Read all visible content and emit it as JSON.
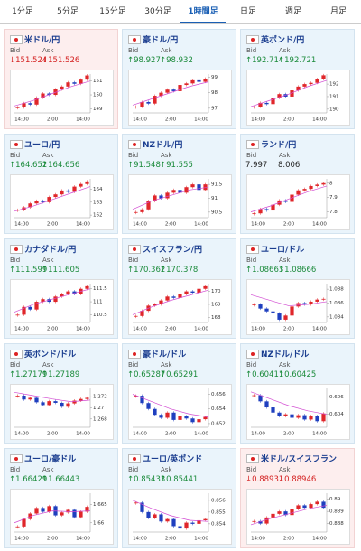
{
  "tabs": [
    "1分足",
    "5分足",
    "15分足",
    "30分足",
    "1時間足",
    "日足",
    "週足",
    "月足"
  ],
  "active_tab": 4,
  "bid_label": "Bid",
  "ask_label": "Ask",
  "xlabels": [
    "14:00",
    "2:00",
    "14:00"
  ],
  "cards": [
    {
      "name": "米ドル/円",
      "bid": "↓151.524",
      "ask": "↓151.526",
      "trend": "down",
      "ylim": [
        148.7,
        151.5
      ],
      "yticks": [
        151,
        150,
        149
      ],
      "closes": [
        149.1,
        149.4,
        149.3,
        149.8,
        150.1,
        150.0,
        150.4,
        150.6,
        150.9,
        150.8,
        151.1,
        151.4
      ],
      "ma": [
        149.2,
        149.6,
        150.1,
        150.6,
        151.0
      ]
    },
    {
      "name": "豪ドル/円",
      "bid": "↑98.927",
      "ask": "↑98.932",
      "trend": "up",
      "ylim": [
        96.7,
        99.2
      ],
      "yticks": [
        99,
        98,
        97
      ],
      "closes": [
        97.1,
        97.4,
        97.3,
        97.8,
        98.0,
        98.2,
        98.1,
        98.5,
        98.6,
        98.8,
        98.7,
        98.9
      ],
      "ma": [
        97.2,
        97.6,
        98.0,
        98.4,
        98.7
      ]
    },
    {
      "name": "英ポンド/円",
      "bid": "↑192.714",
      "ask": "↑192.721",
      "trend": "up",
      "ylim": [
        189.7,
        192.8
      ],
      "yticks": [
        192,
        191,
        190
      ],
      "closes": [
        190.2,
        190.5,
        190.4,
        190.9,
        191.2,
        191.0,
        191.5,
        191.8,
        192.0,
        192.1,
        192.4,
        192.7
      ],
      "ma": [
        190.2,
        190.7,
        191.2,
        191.8,
        192.3
      ]
    },
    {
      "name": "ユーロ/円",
      "bid": "↑164.652",
      "ask": "↑164.656",
      "trend": "up",
      "ylim": [
        161.8,
        164.8
      ],
      "yticks": [
        164,
        163,
        162
      ],
      "closes": [
        162.4,
        162.6,
        162.9,
        163.1,
        163.0,
        163.4,
        163.6,
        163.9,
        163.8,
        164.2,
        164.4,
        164.6
      ],
      "ma": [
        162.3,
        162.7,
        163.2,
        163.7,
        164.2
      ]
    },
    {
      "name": "NZドル/円",
      "bid": "↑91.548",
      "ask": "↑91.555",
      "trend": "up",
      "ylim": [
        90.3,
        91.7
      ],
      "yticks": [
        91.5,
        91,
        90.5
      ],
      "closes": [
        90.5,
        90.6,
        90.9,
        91.1,
        91.0,
        91.2,
        91.3,
        91.2,
        91.4,
        91.5,
        91.3,
        91.5
      ],
      "ma": [
        90.6,
        90.9,
        91.1,
        91.3,
        91.4
      ]
    },
    {
      "name": "ランド/円",
      "bid": "7.997",
      "ask": "8.006",
      "trend": "flat",
      "ylim": [
        7.76,
        8.03
      ],
      "yticks": [
        8,
        7.9,
        7.8
      ],
      "closes": [
        7.79,
        7.82,
        7.81,
        7.85,
        7.88,
        7.87,
        7.92,
        7.95,
        7.96,
        7.98,
        7.99,
        8.0
      ],
      "ma": [
        7.8,
        7.84,
        7.89,
        7.94,
        7.98
      ]
    },
    {
      "name": "カナダドル/円",
      "bid": "↑111.599",
      "ask": "↑111.605",
      "trend": "up",
      "ylim": [
        110.2,
        111.7
      ],
      "yticks": [
        111.5,
        111,
        110.5
      ],
      "closes": [
        110.5,
        110.8,
        110.7,
        111.0,
        111.1,
        111.0,
        111.2,
        111.3,
        111.4,
        111.3,
        111.5,
        111.6
      ],
      "ma": [
        110.6,
        110.9,
        111.1,
        111.3,
        111.5
      ]
    },
    {
      "name": "スイスフラン/円",
      "bid": "↑170.362",
      "ask": "↑170.378",
      "trend": "up",
      "ylim": [
        167.6,
        170.6
      ],
      "yticks": [
        170,
        169,
        168
      ],
      "closes": [
        168.1,
        168.5,
        168.9,
        169.0,
        169.3,
        169.6,
        169.5,
        169.8,
        170.0,
        169.9,
        170.2,
        170.4
      ],
      "ma": [
        168.2,
        168.8,
        169.3,
        169.7,
        170.1
      ]
    },
    {
      "name": "ユーロ/ドル",
      "bid": "↑1.08663",
      "ask": "↑1.08666",
      "trend": "up",
      "ylim": [
        1.0832,
        1.0888
      ],
      "yticks": [
        1.088,
        1.086,
        1.084
      ],
      "closes": [
        1.0858,
        1.0852,
        1.0848,
        1.0845,
        1.0836,
        1.0842,
        1.0855,
        1.086,
        1.0858,
        1.0862,
        1.0865,
        1.0866
      ],
      "ma": [
        1.0872,
        1.0864,
        1.0856,
        1.0858,
        1.0862
      ]
    },
    {
      "name": "英ポンド/ドル",
      "bid": "↑1.27179",
      "ask": "↑1.27189",
      "trend": "up",
      "ylim": [
        1.2665,
        1.2735
      ],
      "yticks": [
        1.272,
        1.27,
        1.268
      ],
      "closes": [
        1.2722,
        1.2715,
        1.2718,
        1.271,
        1.2705,
        1.2712,
        1.2709,
        1.2702,
        1.2708,
        1.2713,
        1.2716,
        1.2718
      ],
      "ma": [
        1.2728,
        1.2722,
        1.2716,
        1.2711,
        1.2714
      ]
    },
    {
      "name": "豪ドル/ドル",
      "bid": "↑0.65287",
      "ask": "↑0.65291",
      "trend": "up",
      "ylim": [
        0.6515,
        0.6568
      ],
      "yticks": [
        0.656,
        0.654,
        0.652
      ],
      "closes": [
        0.6558,
        0.6548,
        0.654,
        0.6532,
        0.6528,
        0.6535,
        0.6525,
        0.653,
        0.6527,
        0.6522,
        0.6526,
        0.6529
      ],
      "ma": [
        0.656,
        0.655,
        0.654,
        0.6533,
        0.6529
      ]
    },
    {
      "name": "NZドル/ドル",
      "bid": "↑0.60411",
      "ask": "↑0.60425",
      "trend": "up",
      "ylim": [
        0.6025,
        0.607
      ],
      "yticks": [
        0.606,
        0.604
      ],
      "closes": [
        0.6062,
        0.6055,
        0.6048,
        0.6042,
        0.6038,
        0.604,
        0.6036,
        0.6039,
        0.6034,
        0.6038,
        0.6032,
        0.6041
      ],
      "ma": [
        0.6066,
        0.6058,
        0.605,
        0.6044,
        0.604
      ]
    },
    {
      "name": "ユーロ/豪ドル",
      "bid": "↑1.66429",
      "ask": "↑1.66443",
      "trend": "up",
      "ylim": [
        1.6575,
        1.668
      ],
      "yticks": [
        1.665,
        1.66
      ],
      "closes": [
        1.659,
        1.661,
        1.6625,
        1.664,
        1.663,
        1.6645,
        1.662,
        1.6628,
        1.6635,
        1.6615,
        1.663,
        1.6643
      ],
      "ma": [
        1.66,
        1.662,
        1.6632,
        1.663,
        1.6632
      ]
    },
    {
      "name": "ユーロ/英ポンド",
      "bid": "↑0.85433",
      "ask": "↑0.85441",
      "trend": "up",
      "ylim": [
        0.8533,
        0.8566
      ],
      "yticks": [
        0.856,
        0.855,
        0.854
      ],
      "closes": [
        0.8558,
        0.855,
        0.8545,
        0.8548,
        0.8542,
        0.8544,
        0.8538,
        0.8536,
        0.8541,
        0.854,
        0.8543,
        0.8544
      ],
      "ma": [
        0.856,
        0.8553,
        0.8547,
        0.8543,
        0.8542
      ]
    },
    {
      "name": "米ドル/スイスフラン",
      "bid": "↓0.88931",
      "ask": "↓0.88946",
      "trend": "down",
      "ylim": [
        0.8873,
        0.8905
      ],
      "yticks": [
        0.89,
        0.889,
        0.888
      ],
      "closes": [
        0.8882,
        0.888,
        0.8885,
        0.8888,
        0.889,
        0.8887,
        0.8892,
        0.8895,
        0.8893,
        0.8896,
        0.8898,
        0.8893
      ],
      "ma": [
        0.8879,
        0.8884,
        0.8888,
        0.8892,
        0.8895
      ]
    }
  ]
}
